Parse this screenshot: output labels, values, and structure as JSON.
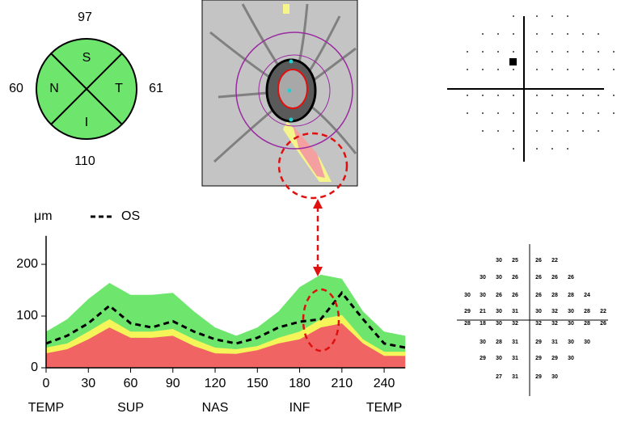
{
  "quadrants": [
    {
      "label": "S",
      "value": 97
    },
    {
      "label": "N",
      "value": 60
    },
    {
      "label": "T",
      "value": 61
    },
    {
      "label": "I",
      "value": 110
    }
  ],
  "chart_data": {
    "type": "line",
    "y_label": "μm",
    "x": [
      0,
      15,
      30,
      45,
      60,
      75,
      90,
      105,
      120,
      135,
      150,
      165,
      180,
      195,
      210,
      225,
      240,
      255
    ],
    "series": [
      {
        "name": "OS",
        "color": "#000000",
        "values": [
          47,
          62,
          86,
          120,
          86,
          78,
          90,
          70,
          55,
          47,
          58,
          78,
          89,
          94,
          145,
          94,
          47,
          39
        ]
      }
    ],
    "bands": [
      {
        "color": "#6ee66e",
        "values": [
          70,
          94,
          133,
          164,
          141,
          141,
          145,
          109,
          78,
          62,
          78,
          109,
          156,
          180,
          172,
          109,
          70,
          62
        ]
      },
      {
        "color": "#f5f55a",
        "values": [
          39,
          47,
          70,
          94,
          70,
          70,
          75,
          55,
          39,
          36,
          42,
          58,
          70,
          94,
          102,
          55,
          31,
          31
        ]
      },
      {
        "color": "#f06464",
        "values": [
          28,
          36,
          55,
          78,
          58,
          58,
          62,
          42,
          28,
          27,
          34,
          47,
          55,
          78,
          86,
          47,
          23,
          23
        ]
      }
    ],
    "xlim": [
      0,
      255
    ],
    "ylim": [
      0,
      255
    ],
    "xticks": [
      0,
      30,
      60,
      90,
      120,
      150,
      180,
      210,
      240
    ],
    "yticks": [
      0,
      100,
      200
    ],
    "x_regions": [
      {
        "value": 0,
        "label": "TEMP"
      },
      {
        "value": 60,
        "label": "SUP"
      },
      {
        "value": 120,
        "label": "NAS"
      },
      {
        "value": 180,
        "label": "INF"
      },
      {
        "value": 240,
        "label": "TEMP"
      }
    ]
  },
  "threshold_rows": [
    [
      30,
      25,
      26,
      22
    ],
    [
      30,
      30,
      26,
      26,
      26,
      26
    ],
    [
      30,
      30,
      26,
      26,
      26,
      28,
      28,
      24
    ],
    [
      29,
      21,
      30,
      31,
      30,
      32,
      30,
      28,
      22
    ],
    [
      28,
      18,
      30,
      32,
      32,
      32,
      30,
      28,
      26
    ],
    [
      30,
      28,
      31,
      29,
      31,
      30,
      30
    ],
    [
      29,
      30,
      31,
      29,
      29,
      30
    ],
    [
      27,
      31,
      29,
      30
    ]
  ]
}
